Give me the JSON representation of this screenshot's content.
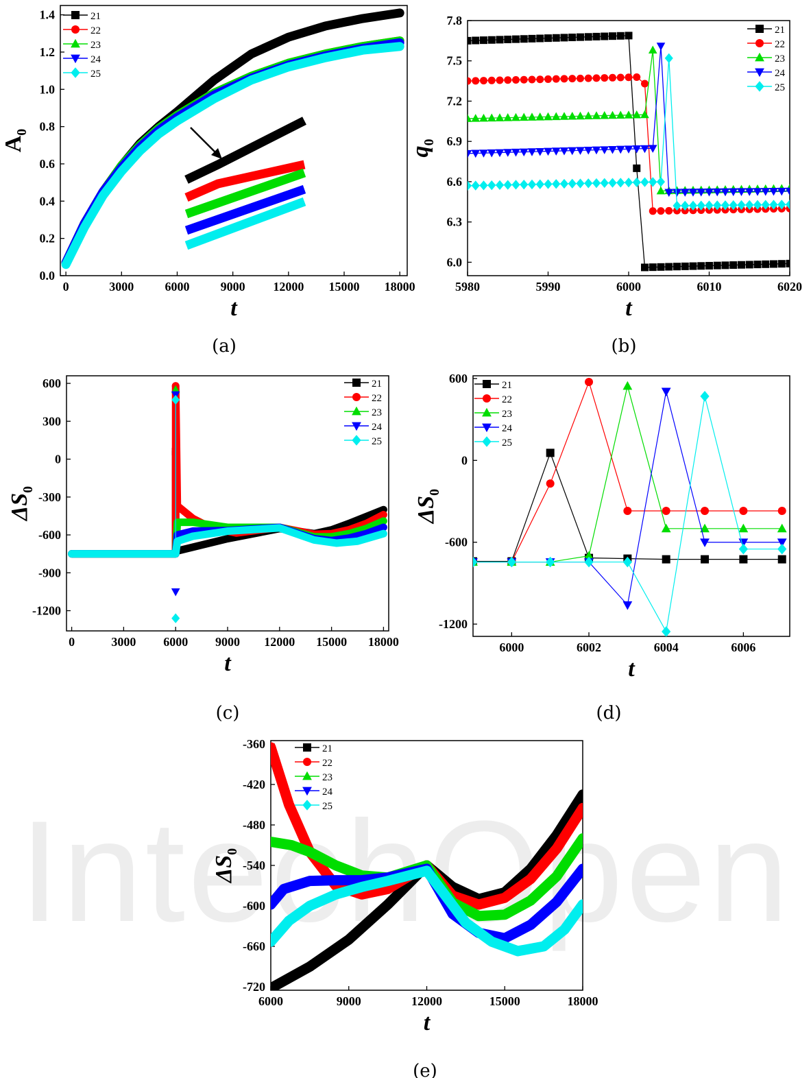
{
  "watermark": "IntechOpen",
  "chart_data": [
    {
      "panel_label": "(a)",
      "type": "line",
      "xlabel": "t",
      "ylabel": "A",
      "ylabel_sub": "0",
      "xlim": [
        -300,
        18400
      ],
      "ylim": [
        0,
        1.45
      ],
      "xticks": [
        0,
        3000,
        6000,
        9000,
        12000,
        15000,
        18000
      ],
      "yticks": [
        0.0,
        0.2,
        0.4,
        0.6,
        0.8,
        1.0,
        1.2,
        1.4
      ],
      "ytick_labels": [
        "0.0",
        "0.2",
        "0.4",
        "0.6",
        "0.8",
        "1.0",
        "1.2",
        "1.4"
      ],
      "legend": "top-left",
      "series": [
        {
          "name": "21",
          "color": "#000000",
          "marker": "square",
          "x": [
            0,
            1000,
            2000,
            3000,
            4000,
            5000,
            6000,
            8000,
            10000,
            12000,
            14000,
            16000,
            18000
          ],
          "y": [
            0.07,
            0.28,
            0.45,
            0.59,
            0.71,
            0.8,
            0.88,
            1.05,
            1.19,
            1.28,
            1.34,
            1.38,
            1.41
          ]
        },
        {
          "name": "22",
          "color": "#ff0000",
          "marker": "circle",
          "x": [
            0,
            1000,
            2000,
            3000,
            4000,
            5000,
            6000,
            8000,
            10000,
            12000,
            14000,
            16000,
            18000
          ],
          "y": [
            0.07,
            0.28,
            0.45,
            0.59,
            0.7,
            0.79,
            0.86,
            0.98,
            1.07,
            1.14,
            1.19,
            1.23,
            1.26
          ]
        },
        {
          "name": "23",
          "color": "#00dd00",
          "marker": "triangle-up",
          "x": [
            0,
            1000,
            2000,
            3000,
            4000,
            5000,
            6000,
            8000,
            10000,
            12000,
            14000,
            16000,
            18000
          ],
          "y": [
            0.07,
            0.28,
            0.45,
            0.59,
            0.7,
            0.79,
            0.86,
            0.98,
            1.07,
            1.14,
            1.19,
            1.23,
            1.26
          ]
        },
        {
          "name": "24",
          "color": "#0000ff",
          "marker": "triangle-down",
          "x": [
            0,
            1000,
            2000,
            3000,
            4000,
            5000,
            6000,
            8000,
            10000,
            12000,
            14000,
            16000,
            18000
          ],
          "y": [
            0.07,
            0.28,
            0.45,
            0.58,
            0.69,
            0.78,
            0.85,
            0.97,
            1.06,
            1.13,
            1.18,
            1.22,
            1.25
          ]
        },
        {
          "name": "25",
          "color": "#00eeee",
          "marker": "diamond",
          "x": [
            0,
            1000,
            2000,
            3000,
            4000,
            5000,
            6000,
            8000,
            10000,
            12000,
            14000,
            16000,
            18000
          ],
          "y": [
            0.06,
            0.26,
            0.43,
            0.56,
            0.67,
            0.76,
            0.83,
            0.95,
            1.05,
            1.12,
            1.17,
            1.21,
            1.23
          ]
        }
      ]
    },
    {
      "panel_label": "(b)",
      "type": "scatter",
      "xlabel": "t",
      "ylabel": "q",
      "ylabel_sub": "0",
      "xlim": [
        5980,
        6020
      ],
      "ylim": [
        5.9,
        7.8
      ],
      "xticks": [
        5980,
        5990,
        6000,
        6010,
        6020
      ],
      "yticks": [
        6.0,
        6.3,
        6.6,
        6.9,
        7.2,
        7.5,
        7.8
      ],
      "ytick_labels": [
        "6.0",
        "6.3",
        "6.6",
        "6.9",
        "7.2",
        "7.5",
        "7.8"
      ],
      "legend": "top-right",
      "series": [
        {
          "name": "21",
          "color": "#000000",
          "marker": "square",
          "start": 5980,
          "end": 6020,
          "base": [
            7.65,
            7.69
          ],
          "switch": 6001,
          "spike": [
            6.7
          ],
          "after": [
            5.96,
            5.99
          ]
        },
        {
          "name": "22",
          "color": "#ff0000",
          "marker": "circle",
          "start": 5980,
          "end": 6020,
          "base": [
            7.35,
            7.38
          ],
          "switch": 6002,
          "spike": [
            7.33
          ],
          "after": [
            6.38,
            6.4
          ]
        },
        {
          "name": "23",
          "color": "#00dd00",
          "marker": "triangle-up",
          "start": 5980,
          "end": 6020,
          "base": [
            7.07,
            7.1
          ],
          "switch": 6003,
          "spike": [
            7.58
          ],
          "after": [
            6.53,
            6.55
          ]
        },
        {
          "name": "24",
          "color": "#0000ff",
          "marker": "triangle-down",
          "start": 5980,
          "end": 6020,
          "base": [
            6.81,
            6.85
          ],
          "switch": 6004,
          "spike": [
            7.61
          ],
          "after": [
            6.52,
            6.53
          ]
        },
        {
          "name": "25",
          "color": "#00eeee",
          "marker": "diamond",
          "start": 5980,
          "end": 6020,
          "base": [
            6.57,
            6.6
          ],
          "switch": 6005,
          "spike": [
            7.52
          ],
          "after": [
            6.42,
            6.43
          ]
        }
      ]
    },
    {
      "panel_label": "(c)",
      "type": "line",
      "xlabel": "t",
      "ylabel": "ΔS",
      "ylabel_sub": "0",
      "xlim": [
        -300,
        18300
      ],
      "ylim": [
        -1360,
        660
      ],
      "xticks": [
        0,
        3000,
        6000,
        9000,
        12000,
        15000,
        18000
      ],
      "yticks": [
        -1200,
        -900,
        -600,
        -300,
        0,
        300,
        600
      ],
      "ytick_labels": [
        "-1200",
        "-900",
        "-600",
        "-300",
        "0",
        "300",
        "600"
      ],
      "legend": "top-right",
      "series": [
        {
          "name": "21",
          "color": "#000000",
          "marker": "square",
          "x": [
            0,
            5999,
            6000,
            6001,
            6002,
            9000,
            12000,
            14000,
            15000,
            16000,
            17000,
            18000
          ],
          "y": [
            -750,
            -750,
            -750,
            60,
            -730,
            -630,
            -550,
            -590,
            -560,
            -510,
            -455,
            -400
          ],
          "spike": {
            "x": 6000,
            "y": [
              60
            ]
          }
        },
        {
          "name": "22",
          "color": "#ff0000",
          "marker": "circle",
          "x": [
            0,
            5999,
            6000,
            6002,
            6100,
            7000,
            8000,
            9500,
            12000,
            14000,
            15000,
            16000,
            17000,
            18000
          ],
          "y": [
            -750,
            -750,
            -750,
            580,
            -370,
            -470,
            -540,
            -585,
            -540,
            -595,
            -590,
            -560,
            -510,
            -440
          ],
          "spike": {
            "x": 6000,
            "y": [
              580,
              -170,
              -370
            ]
          }
        },
        {
          "name": "23",
          "color": "#00dd00",
          "marker": "triangle-up",
          "x": [
            0,
            5999,
            6000,
            6100,
            7000,
            9000,
            12000,
            14000,
            15000,
            16000,
            17000,
            18000
          ],
          "y": [
            -750,
            -750,
            -750,
            -500,
            -500,
            -540,
            -540,
            -615,
            -615,
            -590,
            -550,
            -490
          ],
          "spike": {
            "x": 6000,
            "y": [
              550
            ]
          }
        },
        {
          "name": "24",
          "color": "#0000ff",
          "marker": "triangle-down",
          "x": [
            0,
            5999,
            6000,
            6100,
            7000,
            9000,
            12000,
            14000,
            15000,
            16000,
            17000,
            18000
          ],
          "y": [
            -750,
            -750,
            -750,
            -600,
            -570,
            -565,
            -540,
            -630,
            -645,
            -625,
            -590,
            -540
          ],
          "spike": {
            "x": 6000,
            "y": [
              510,
              -1050
            ]
          }
        },
        {
          "name": "25",
          "color": "#00eeee",
          "marker": "diamond",
          "x": [
            0,
            5999,
            6000,
            6100,
            7000,
            9000,
            12000,
            14000,
            15300,
            16500,
            18000
          ],
          "y": [
            -750,
            -750,
            -750,
            -650,
            -610,
            -570,
            -545,
            -640,
            -665,
            -650,
            -590
          ],
          "spike": {
            "x": 6000,
            "y": [
              470,
              -1260
            ]
          }
        }
      ]
    },
    {
      "panel_label": "(d)",
      "type": "line",
      "xlabel": "t",
      "ylabel": "ΔS",
      "ylabel_sub": "0",
      "xlim": [
        5999,
        6007.2
      ],
      "ylim": [
        -1290,
        620
      ],
      "xticks": [
        6000,
        6002,
        6004,
        6006
      ],
      "yticks": [
        -1200,
        -600,
        0,
        600
      ],
      "ytick_labels": [
        "-1200",
        "-600",
        "0",
        "600"
      ],
      "legend": "top-left",
      "series": [
        {
          "name": "21",
          "color": "#000000",
          "marker": "square",
          "x": [
            5999,
            6000,
            6001,
            6002,
            6003,
            6004,
            6005,
            6006,
            6007
          ],
          "y": [
            -740,
            -740,
            55,
            -715,
            -720,
            -725,
            -725,
            -725,
            -725
          ]
        },
        {
          "name": "22",
          "color": "#ff0000",
          "marker": "circle",
          "x": [
            5999,
            6000,
            6001,
            6002,
            6003,
            6004,
            6005,
            6006,
            6007
          ],
          "y": [
            -745,
            -745,
            -170,
            575,
            -370,
            -370,
            -370,
            -370,
            -370
          ]
        },
        {
          "name": "23",
          "color": "#00dd00",
          "marker": "triangle-up",
          "x": [
            5999,
            6000,
            6001,
            6002,
            6003,
            6004,
            6005,
            6006,
            6007
          ],
          "y": [
            -745,
            -745,
            -745,
            -700,
            545,
            -500,
            -500,
            -500,
            -500
          ]
        },
        {
          "name": "24",
          "color": "#0000ff",
          "marker": "triangle-down",
          "x": [
            5999,
            6000,
            6001,
            6002,
            6003,
            6004,
            6005,
            6006,
            6007
          ],
          "y": [
            -745,
            -745,
            -745,
            -745,
            -1060,
            505,
            -600,
            -600,
            -600
          ]
        },
        {
          "name": "25",
          "color": "#00eeee",
          "marker": "diamond",
          "x": [
            5999,
            6000,
            6001,
            6002,
            6003,
            6004,
            6005,
            6006,
            6007
          ],
          "y": [
            -745,
            -745,
            -745,
            -745,
            -745,
            -1255,
            470,
            -650,
            -650
          ]
        }
      ]
    },
    {
      "panel_label": "(e)",
      "type": "line",
      "xlabel": "t",
      "ylabel": "ΔS",
      "ylabel_sub": "0",
      "xlim": [
        6000,
        18000
      ],
      "ylim": [
        -725,
        -355
      ],
      "xticks": [
        6000,
        9000,
        12000,
        15000,
        18000
      ],
      "yticks": [
        -720,
        -660,
        -600,
        -540,
        -480,
        -420,
        -360
      ],
      "ytick_labels": [
        "-720",
        "-660",
        "-600",
        "-540",
        "-480",
        "-420",
        "-360"
      ],
      "legend": "top-left",
      "series": [
        {
          "name": "21",
          "color": "#000000",
          "marker": "square",
          "x": [
            6000,
            7500,
            9000,
            10500,
            12000,
            13000,
            14000,
            15000,
            16000,
            17000,
            18000
          ],
          "y": [
            -722,
            -690,
            -650,
            -598,
            -540,
            -572,
            -590,
            -580,
            -545,
            -495,
            -435
          ]
        },
        {
          "name": "22",
          "color": "#ff0000",
          "marker": "circle",
          "x": [
            6000,
            6700,
            7500,
            8500,
            9500,
            10500,
            12000,
            13000,
            14000,
            15000,
            16000,
            17000,
            18000
          ],
          "y": [
            -365,
            -450,
            -520,
            -570,
            -583,
            -575,
            -540,
            -585,
            -598,
            -588,
            -560,
            -515,
            -455
          ]
        },
        {
          "name": "23",
          "color": "#00dd00",
          "marker": "triangle-up",
          "x": [
            6000,
            6800,
            7500,
            8500,
            9500,
            10500,
            12000,
            13000,
            14000,
            15000,
            16000,
            17000,
            18000
          ],
          "y": [
            -505,
            -510,
            -520,
            -540,
            -555,
            -558,
            -540,
            -595,
            -615,
            -613,
            -592,
            -556,
            -500
          ]
        },
        {
          "name": "24",
          "color": "#0000ff",
          "marker": "triangle-down",
          "x": [
            6000,
            6500,
            7500,
            8500,
            9500,
            10500,
            12000,
            13000,
            14000,
            15000,
            16000,
            17000,
            18000
          ],
          "y": [
            -598,
            -575,
            -563,
            -562,
            -562,
            -558,
            -545,
            -612,
            -640,
            -648,
            -628,
            -594,
            -545
          ]
        },
        {
          "name": "25",
          "color": "#00eeee",
          "marker": "diamond",
          "x": [
            6000,
            6700,
            7500,
            8500,
            9500,
            10500,
            12000,
            13500,
            14500,
            15500,
            16500,
            17300,
            18000
          ],
          "y": [
            -653,
            -622,
            -600,
            -583,
            -572,
            -563,
            -548,
            -625,
            -653,
            -667,
            -660,
            -635,
            -598
          ]
        }
      ]
    }
  ]
}
